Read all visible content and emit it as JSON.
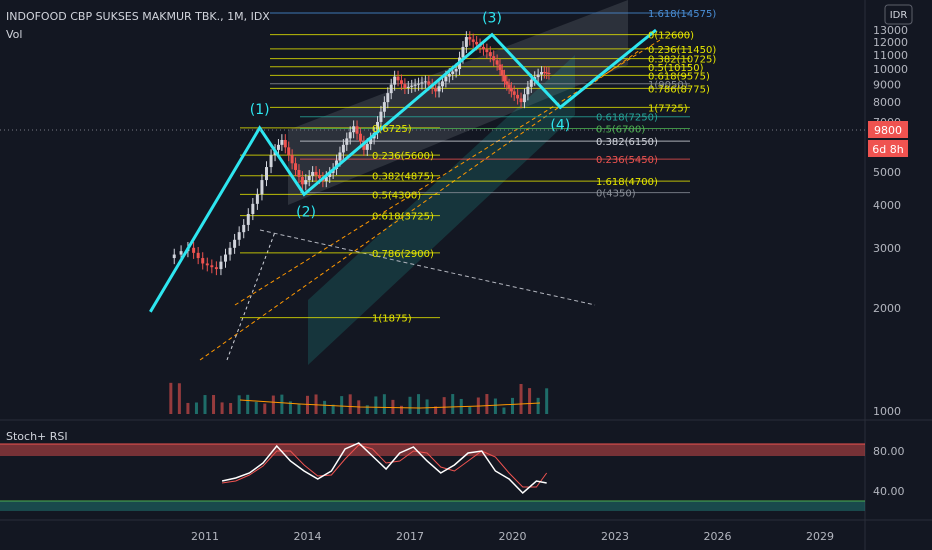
{
  "header": {
    "symbol_line": "INDOFOOD CBP SUKSES MAKMUR TBK., 1M, IDX",
    "vol_label": "Vol",
    "currency": "IDR"
  },
  "price_panel": {
    "current_price": "9800",
    "countdown": "6d 8h",
    "price_axis_ticks": [
      "13000",
      "12000",
      "11000",
      "10000",
      "9000",
      "8000",
      "7000",
      "6000",
      "5000",
      "4000",
      "3000",
      "2000",
      "1000"
    ]
  },
  "time_axis": [
    "2011",
    "2014",
    "2017",
    "2020",
    "2023",
    "2026",
    "2029"
  ],
  "oscillator": {
    "title": "Stoch+ RSI",
    "ticks": [
      "80.00",
      "40.00"
    ]
  },
  "waves": [
    {
      "label": "(1)"
    },
    {
      "label": "(2)"
    },
    {
      "label": "(3)"
    },
    {
      "label": "(4)"
    }
  ],
  "fib_set_1": [
    {
      "label": "0(6725)",
      "color": "#e6e600"
    },
    {
      "label": "0.236(5600)",
      "color": "#e6e600"
    },
    {
      "label": "0.382(4875)",
      "color": "#e6e600"
    },
    {
      "label": "0.5(4300)",
      "color": "#e6e600"
    },
    {
      "label": "0.618(3725)",
      "color": "#e6e600"
    },
    {
      "label": "0.786(2900)",
      "color": "#e6e600"
    },
    {
      "label": "1(1875)",
      "color": "#e6e600"
    }
  ],
  "fib_set_2": [
    {
      "label": "0(12600)",
      "color": "#e6e600"
    },
    {
      "label": "1.618(14575)",
      "color": "#4a90d9"
    },
    {
      "label": "0.236(11450)",
      "color": "#e6e600"
    },
    {
      "label": "0.382(10725)",
      "color": "#e6e600"
    },
    {
      "label": "0.5(10150)",
      "color": "#e6e600"
    },
    {
      "label": "0.618(9575)",
      "color": "#e6e600"
    },
    {
      "label": "1(9050)",
      "color": "#8a8f98"
    },
    {
      "label": "0.786(8775)",
      "color": "#e6e600"
    },
    {
      "label": "1(7725)",
      "color": "#e6e600"
    }
  ],
  "fib_set_3": [
    {
      "label": "0.618(7250)",
      "color": "#26a69a"
    },
    {
      "label": "0.5(6700)",
      "color": "#4caf50"
    },
    {
      "label": "0.382(6150)",
      "color": "#d1d4dc"
    },
    {
      "label": "0.236(5450)",
      "color": "#ef5350"
    },
    {
      "label": "1.618(4700)",
      "color": "#e6e600"
    },
    {
      "label": "0(4350)",
      "color": "#8a8f98"
    }
  ],
  "colors": {
    "background": "#131722",
    "wave_line": "#2ee6f0",
    "up_candle": "#d1d4dc",
    "down_candle": "#ef5350",
    "price_badge": "#ef5350",
    "stoch_k": "#ffffff",
    "stoch_d": "#ef5350",
    "axis_text": "#b2b5be"
  },
  "chart_data": {
    "type": "line",
    "title": "INDOFOOD CBP SUKSES MAKMUR TBK., 1M, IDX",
    "xlabel": "",
    "ylabel": "",
    "ylim": [
      1000,
      13000
    ],
    "x_range": [
      2010,
      2030
    ],
    "y_scale": "log",
    "series": [
      {
        "name": "",
        "x": [
          2010.0,
          2010.6,
          2011.0,
          2011.4,
          2011.8,
          2012.2,
          2012.6,
          2013.0,
          2013.3,
          2013.6,
          2013.9,
          2014.2,
          2014.5,
          2014.8,
          2015.1,
          2015.4,
          2015.7,
          2016.0,
          2016.3,
          2016.6,
          2016.9,
          2017.2,
          2017.5,
          2017.8,
          2018.1,
          2018.4,
          2018.7,
          2019.0,
          2019.3,
          2019.6,
          2019.8,
          2020.0,
          2020.3,
          2020.6,
          2020.9,
          2021.1
        ],
        "values": [
          2800,
          3000,
          2700,
          2600,
          3000,
          3500,
          4300,
          5600,
          6200,
          5300,
          4600,
          5000,
          4700,
          5100,
          6000,
          6800,
          5800,
          6500,
          8000,
          9500,
          8800,
          9000,
          9200,
          8600,
          9500,
          10000,
          12400,
          11800,
          11200,
          10300,
          9200,
          8600,
          8000,
          9300,
          9800,
          9700
        ]
      }
    ],
    "wave_points": [
      {
        "label": "(1)",
        "x": 2012.6,
        "y": 6725
      },
      {
        "label": "(2)",
        "x": 2013.9,
        "y": 4300
      },
      {
        "label": "(3)",
        "x": 2019.4,
        "y": 12600
      },
      {
        "label": "(4)",
        "x": 2021.4,
        "y": 7725
      }
    ],
    "stoch_rsi": {
      "ylim": [
        20,
        100
      ],
      "x": [
        2011.5,
        2011.9,
        2012.3,
        2012.7,
        2013.1,
        2013.5,
        2013.9,
        2014.3,
        2014.7,
        2015.1,
        2015.5,
        2015.9,
        2016.3,
        2016.7,
        2017.1,
        2017.5,
        2017.9,
        2018.3,
        2018.7,
        2019.1,
        2019.5,
        2019.9,
        2020.3,
        2020.7,
        2021.0
      ],
      "k": [
        50,
        53,
        58,
        68,
        85,
        70,
        60,
        52,
        60,
        82,
        88,
        75,
        62,
        78,
        84,
        70,
        58,
        66,
        78,
        80,
        60,
        52,
        38,
        50,
        48
      ],
      "d": [
        48,
        50,
        56,
        65,
        80,
        80,
        66,
        55,
        56,
        72,
        86,
        82,
        68,
        70,
        80,
        78,
        64,
        60,
        70,
        80,
        74,
        58,
        44,
        44,
        58
      ]
    }
  }
}
